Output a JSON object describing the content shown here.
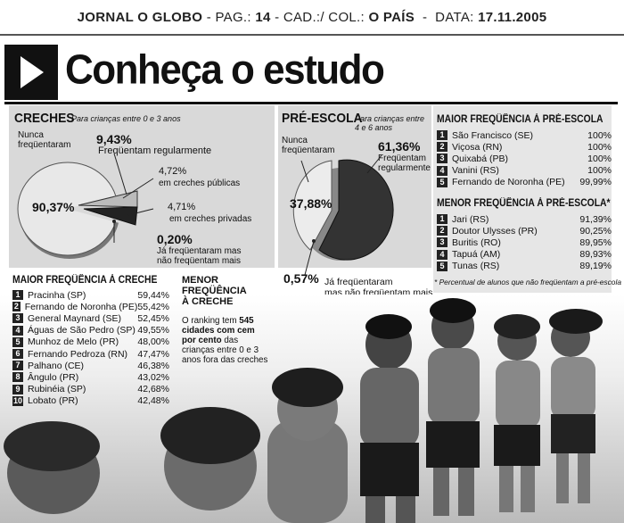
{
  "masthead": {
    "journal": "JORNAL O GLOBO",
    "sep1": " - PAG.: ",
    "page": "14",
    "sep2": " - CAD.:/ COL.: ",
    "section": "O PAÍS",
    "sep3": "  -  DATA: ",
    "date": "17.11.2005"
  },
  "title": "Conheça o estudo",
  "creches": {
    "heading": "CRECHES",
    "subtitle": "Para crianças entre 0 e 3 anos",
    "never_label": "Nunca\nfreqüentaram",
    "never_value": "90,37%",
    "regular_value": "9,43%",
    "regular_label": "Freqüentam regularmente",
    "public_value": "4,72%",
    "public_label": "em creches públicas",
    "private_value": "4,71%",
    "private_label": "em creches privadas",
    "former_value": "0,20%",
    "former_label": "Já freqüentaram mas\nnão freqüentam mais"
  },
  "preescola": {
    "heading": "PRÉ-ESCOLA",
    "subtitle": "Para crianças entre\n4 e 6 anos",
    "never_label": "Nunca\nfreqüentaram",
    "never_value": "37,88%",
    "regular_value": "61,36%",
    "regular_label": "Freqüentam\nregularmente",
    "former_value": "0,57%",
    "former_label": "Já freqüentaram\nmas não freqüentam mais"
  },
  "maior_creche": {
    "heading": "MAIOR FREQÜÊNCIA À CRECHE",
    "rows": [
      {
        "n": "1",
        "name": "Pracinha (SP)",
        "value": "59,44%"
      },
      {
        "n": "2",
        "name": "Fernando de Noronha (PE)",
        "value": "55,42%"
      },
      {
        "n": "3",
        "name": "General Maynard (SE)",
        "value": "52,45%"
      },
      {
        "n": "4",
        "name": "Águas de São Pedro (SP)",
        "value": "49,55%"
      },
      {
        "n": "5",
        "name": "Munhoz de Melo (PR)",
        "value": "48,00%"
      },
      {
        "n": "6",
        "name": "Fernando Pedroza (RN)",
        "value": "47,47%"
      },
      {
        "n": "7",
        "name": "Palhano (CE)",
        "value": "46,38%"
      },
      {
        "n": "8",
        "name": "Ângulo (PR)",
        "value": "43,02%"
      },
      {
        "n": "9",
        "name": "Rubinéia (SP)",
        "value": "42,68%"
      },
      {
        "n": "10",
        "name": "Lobato (PR)",
        "value": "42,48%"
      }
    ]
  },
  "menor_creche": {
    "heading": "MENOR FREQÜÊNCIA\nÀ CRECHE",
    "text_before": "O ranking tem ",
    "bold_text": "545 cidades com cem por cento",
    "text_after": " das crianças entre 0 e 3 anos fora das creches"
  },
  "maior_pre": {
    "heading": "MAIOR FREQÜÊNCIA À PRÉ-ESCOLA",
    "rows": [
      {
        "n": "1",
        "name": "São Francisco (SE)",
        "value": "100%"
      },
      {
        "n": "2",
        "name": "Viçosa (RN)",
        "value": "100%"
      },
      {
        "n": "3",
        "name": "Quixabá (PB)",
        "value": "100%"
      },
      {
        "n": "4",
        "name": "Vanini (RS)",
        "value": "100%"
      },
      {
        "n": "5",
        "name": "Fernando de Noronha (PE)",
        "value": "99,99%"
      }
    ]
  },
  "menor_pre": {
    "heading": "MENOR FREQÜÊNCIA À PRÉ-ESCOLA*",
    "rows": [
      {
        "n": "1",
        "name": "Jari (RS)",
        "value": "91,39%"
      },
      {
        "n": "2",
        "name": "Doutor Ulysses (PR)",
        "value": "90,25%"
      },
      {
        "n": "3",
        "name": "Buritis (RO)",
        "value": "89,95%"
      },
      {
        "n": "4",
        "name": "Tapuá (AM)",
        "value": "89,93%"
      },
      {
        "n": "5",
        "name": "Tunas (RS)",
        "value": "89,19%"
      }
    ]
  },
  "footnote": "* Percentual de alunos que não freqüentam a pré-escola"
}
